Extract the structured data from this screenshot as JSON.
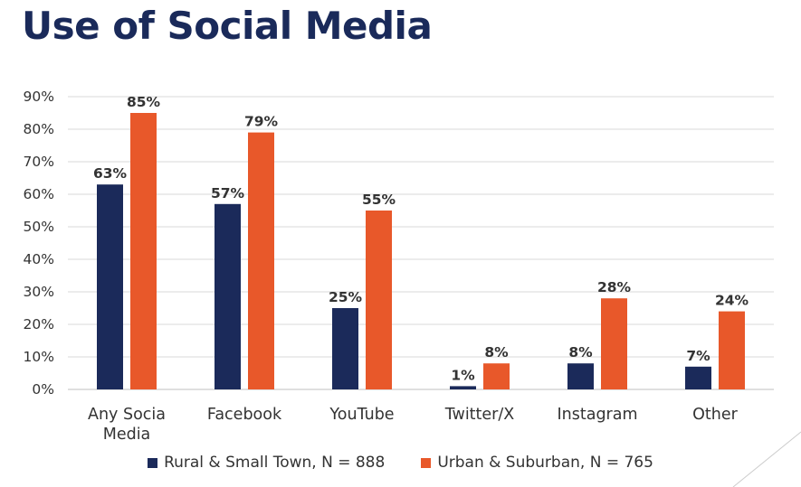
{
  "chart_data": {
    "type": "bar",
    "title": "Use of Social Media",
    "categories": [
      "Any Socia Media",
      "Facebook",
      "YouTube",
      "Twitter/X",
      "Instagram",
      "Other"
    ],
    "category_lines": [
      [
        "Any Socia",
        "Media"
      ],
      [
        "Facebook"
      ],
      [
        "YouTube"
      ],
      [
        "Twitter/X"
      ],
      [
        "Instagram"
      ],
      [
        "Other"
      ]
    ],
    "series": [
      {
        "name": "Rural & Small Town, N = 888",
        "color": "#1b2a5a",
        "values": [
          63,
          57,
          25,
          1,
          8,
          7
        ]
      },
      {
        "name": "Urban & Suburban, N = 765",
        "color": "#e8582a",
        "values": [
          85,
          79,
          55,
          8,
          28,
          24
        ]
      }
    ],
    "ylim": [
      0,
      90
    ],
    "ytick_step": 10,
    "ytick_labels": [
      "0%",
      "10%",
      "20%",
      "30%",
      "40%",
      "50%",
      "60%",
      "70%",
      "80%",
      "90%"
    ],
    "value_suffix": "%",
    "grid": true,
    "xlabel": "",
    "ylabel": "",
    "legend_position": "bottom"
  }
}
